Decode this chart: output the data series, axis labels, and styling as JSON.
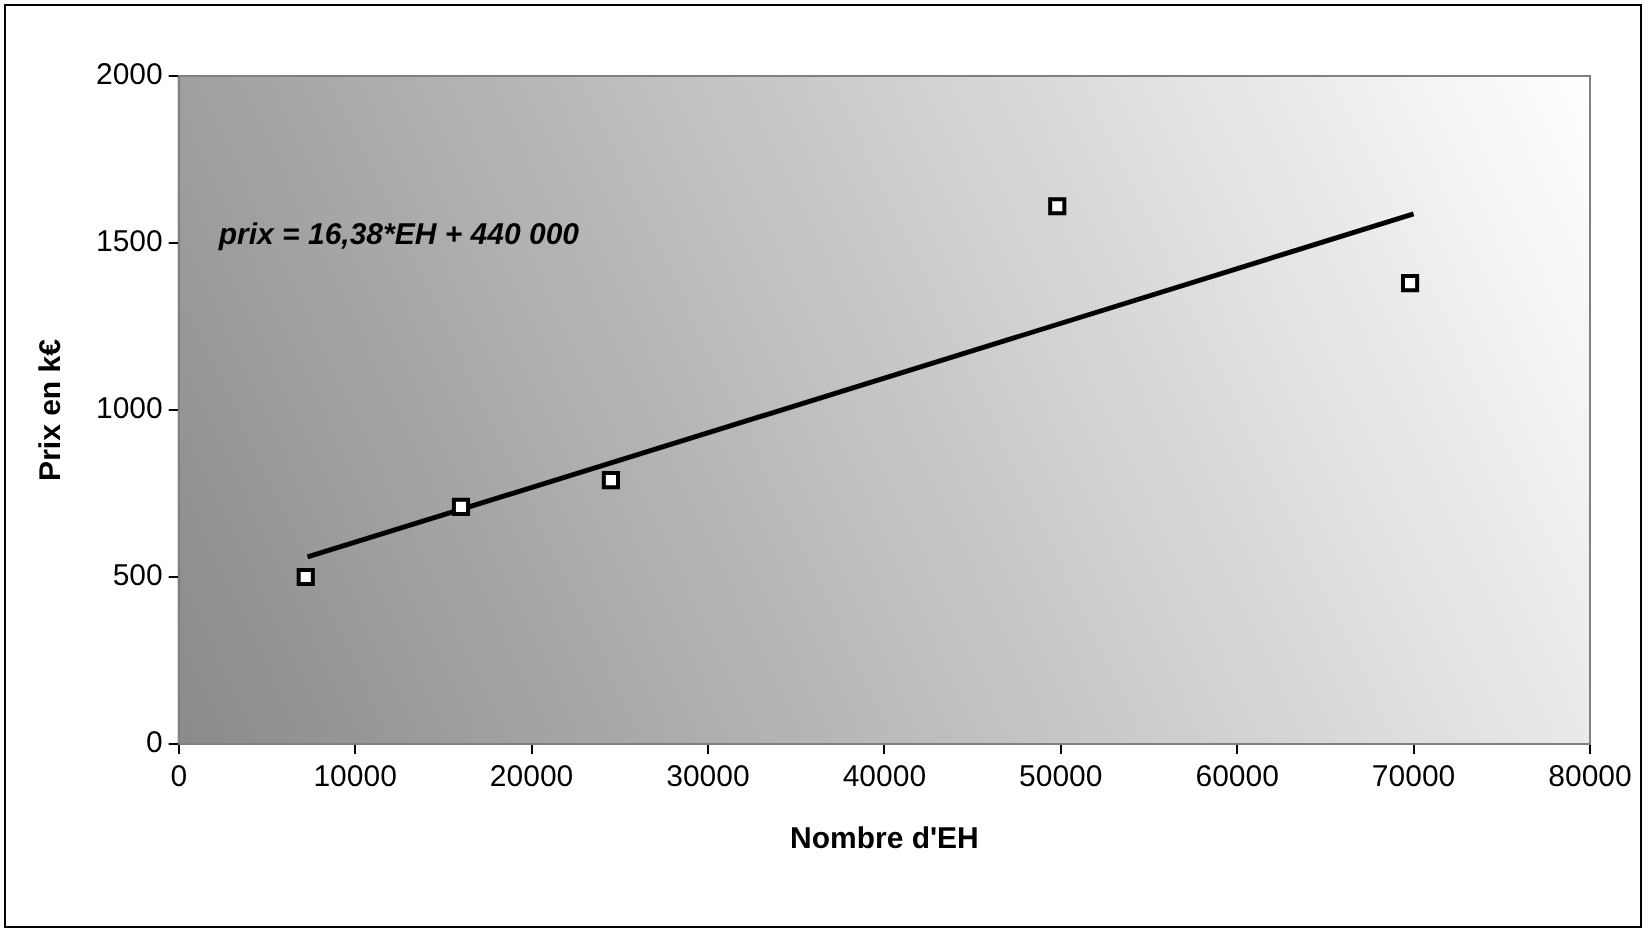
{
  "chart_data": {
    "type": "scatter",
    "xlabel": "Nombre d'EH",
    "ylabel": "Prix en k€",
    "series": [
      {
        "color": "#000000",
        "x": [
          7200,
          16000,
          24500,
          49800,
          69800
        ],
        "values": [
          500,
          710,
          790,
          1610,
          1380
        ]
      },
      {
        "type": "line",
        "marker": "none",
        "color": "#000000",
        "x": [
          7300,
          70000
        ],
        "values": [
          560,
          1587
        ]
      }
    ],
    "annotations": [
      "prix = 16,38*EH + 440 000"
    ],
    "xlim": [
      0,
      80000
    ],
    "xticks": [
      0,
      10000,
      20000,
      30000,
      40000,
      50000,
      60000,
      70000,
      80000
    ],
    "ylim": [
      0,
      2000
    ],
    "yticks": [
      0,
      500,
      1000,
      1500,
      2000
    ],
    "grid": false,
    "legend": false,
    "marker": "square"
  }
}
